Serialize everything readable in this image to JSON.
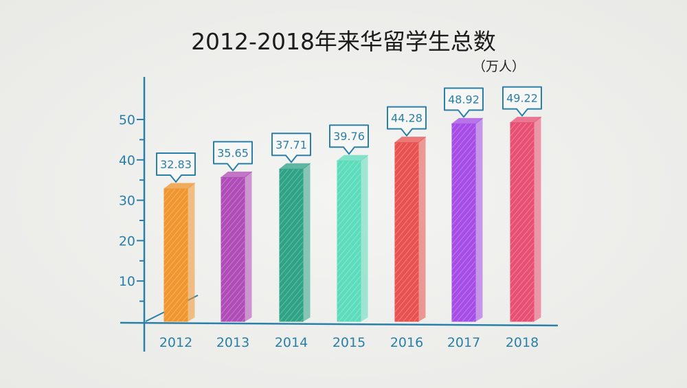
{
  "chart_data": {
    "type": "bar",
    "title": "2012-2018年来华留学生总数",
    "unit": "（万人）",
    "categories": [
      "2012",
      "2013",
      "2014",
      "2015",
      "2016",
      "2017",
      "2018"
    ],
    "values": [
      32.83,
      35.65,
      37.71,
      39.76,
      44.28,
      48.92,
      49.22
    ],
    "data_labels": [
      "32.83",
      "35.65",
      "37.71",
      "39.76",
      "44.28",
      "48.92",
      "49.22"
    ],
    "yticks": [
      "10",
      "20",
      "30",
      "40",
      "50"
    ],
    "ylim": [
      0,
      55
    ],
    "grid": false,
    "style": "hand-drawn 3D bars with callout data labels",
    "colors": [
      "#f0962e",
      "#b04cb8",
      "#2fa386",
      "#5ddcbc",
      "#e8524f",
      "#a54de6",
      "#e85073"
    ],
    "axis_color": "#2a7fa8"
  }
}
